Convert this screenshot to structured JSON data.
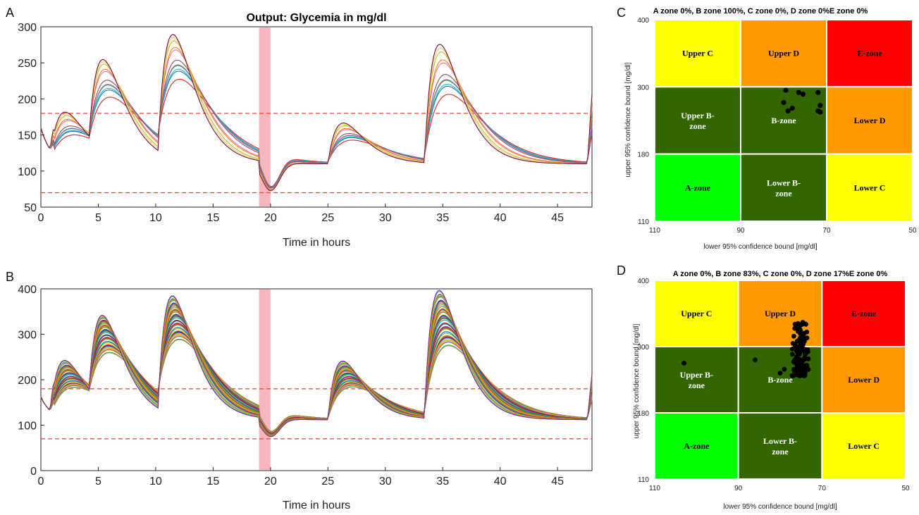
{
  "chart_data": [
    {
      "panel": "A",
      "type": "line",
      "title": "Output: Glycemia in mg/dl",
      "xlabel": "Time in hours",
      "ylabel": "",
      "xlim": [
        0,
        48
      ],
      "ylim": [
        50,
        300
      ],
      "xticks": [
        0,
        5,
        10,
        15,
        20,
        25,
        30,
        35,
        40,
        45
      ],
      "yticks": [
        50,
        100,
        150,
        200,
        250,
        300
      ],
      "reference_lines": [
        180,
        70
      ],
      "shaded_interval": [
        19,
        20
      ],
      "series_count": 12,
      "meal_times": [
        0.8,
        4.2,
        10.2,
        25.0,
        33.4
      ],
      "meal_peaks": [
        182,
        237,
        285,
        168,
        279
      ],
      "baseline": 110,
      "dip_min": 64
    },
    {
      "panel": "B",
      "type": "line",
      "title": "",
      "xlabel": "Time in hours",
      "ylabel": "",
      "xlim": [
        0,
        48
      ],
      "ylim": [
        0,
        400
      ],
      "xticks": [
        0,
        5,
        10,
        15,
        20,
        25,
        30,
        35,
        40,
        45
      ],
      "yticks": [
        0,
        100,
        200,
        300,
        400
      ],
      "reference_lines": [
        180,
        70
      ],
      "shaded_interval": [
        19,
        20
      ],
      "series_count": 60,
      "meal_times": [
        0.8,
        4.2,
        10.2,
        25.0,
        33.4
      ],
      "meal_peaks": [
        241,
        306,
        373,
        241,
        395
      ],
      "baseline": 112,
      "dip_min": 65
    },
    {
      "panel": "C",
      "type": "scatter",
      "title": "A zone 0%, B zone 100%, C zone 0%, D zone 0%E zone 0%",
      "xlabel": "lower 95% confidence bound [mg/dl]",
      "ylabel": "upper 95% confidence bound [mg/dl]",
      "xticks": [
        "110",
        "90",
        "70",
        "50"
      ],
      "yticks": [
        "400",
        "300",
        "180",
        "110"
      ],
      "zones": [
        [
          "Upper C",
          "Upper D",
          "E-zone"
        ],
        [
          "Upper B-zone",
          "B-zone",
          "Lower D"
        ],
        [
          "A-zone",
          "Lower B-zone",
          "Lower C"
        ]
      ],
      "zone_colors": [
        [
          "#ffff00",
          "#ff9900",
          "#ff0000"
        ],
        [
          "#336600",
          "#336600",
          "#ff9900"
        ],
        [
          "#00ff00",
          "#336600",
          "#ffff00"
        ]
      ],
      "points": [
        [
          79.5,
          294
        ],
        [
          76.5,
          290
        ],
        [
          75.5,
          287
        ],
        [
          72,
          290
        ],
        [
          71.5,
          267
        ],
        [
          72,
          257
        ],
        [
          71.5,
          255
        ],
        [
          80,
          272
        ],
        [
          79,
          257
        ],
        [
          78,
          262
        ]
      ]
    },
    {
      "panel": "D",
      "type": "scatter",
      "title": "A zone 0%, B zone 83%, C zone 0%, D zone 17%E zone 0%",
      "xlabel": "lower 95% confidence bound [mg/dl]",
      "ylabel": "upper 95% confidence bound [mg/dl]",
      "xticks": [
        "110",
        "90",
        "70",
        "50"
      ],
      "yticks": [
        "400",
        "300",
        "180",
        "110"
      ],
      "zones": [
        [
          "Upper C",
          "Upper D",
          "E-zone"
        ],
        [
          "Upper B-zone",
          "B-zone",
          "Lower D"
        ],
        [
          "A-zone",
          "Lower B-zone",
          "Lower C"
        ]
      ],
      "zone_colors": [
        [
          "#ffff00",
          "#ff9900",
          "#ff0000"
        ],
        [
          "#336600",
          "#336600",
          "#ff9900"
        ],
        [
          "#00ff00",
          "#336600",
          "#ffff00"
        ]
      ],
      "points_cluster": {
        "x_range": [
          73,
          77.5
        ],
        "y_range": [
          247,
          340
        ],
        "count": 120
      },
      "points_outliers": [
        [
          103,
          270
        ],
        [
          86,
          276
        ],
        [
          80,
          252
        ],
        [
          79,
          259
        ]
      ]
    }
  ]
}
